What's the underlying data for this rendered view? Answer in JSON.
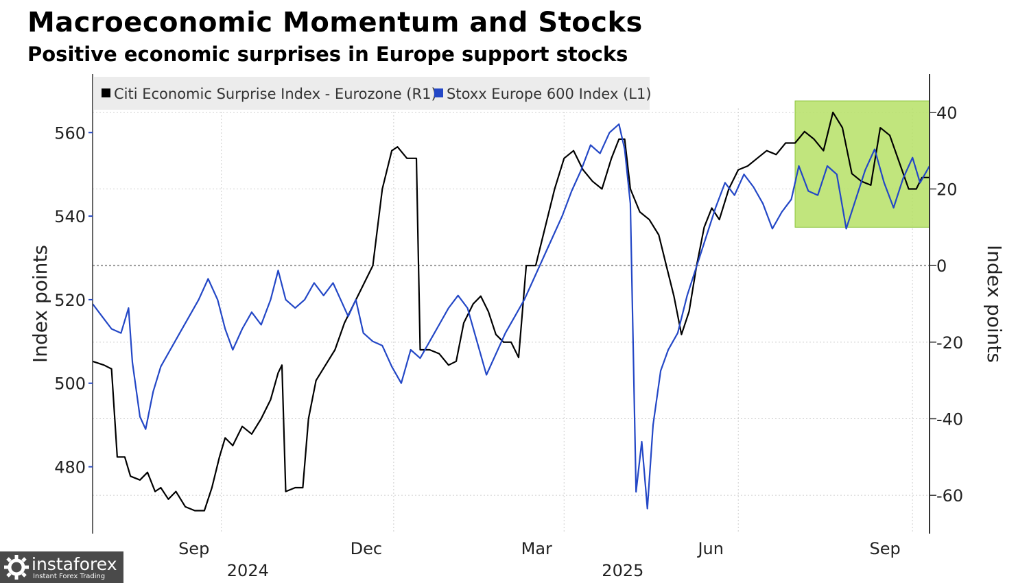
{
  "chart_data": {
    "type": "line",
    "title": "Macroeconomic Momentum and Stocks",
    "subtitle": "Positive economic surprises in Europe support stocks",
    "left_axis": {
      "label": "Index points",
      "ticks": [
        480,
        500,
        520,
        540,
        560
      ],
      "range": [
        464,
        574
      ]
    },
    "right_axis": {
      "label": "Index points",
      "ticks": [
        -60,
        -40,
        -20,
        0,
        20,
        40
      ],
      "range": [
        -70,
        50
      ]
    },
    "x_ticks": [
      {
        "label": "Sep",
        "date": "2024-09-01"
      },
      {
        "label": "Dec",
        "date": "2024-12-01"
      },
      {
        "label": "Mar",
        "date": "2025-03-01"
      },
      {
        "label": "Jun",
        "date": "2025-06-01"
      },
      {
        "label": "Sep",
        "date": "2025-09-01"
      }
    ],
    "year_labels": [
      {
        "label": "2024",
        "date": "2024-09-15"
      },
      {
        "label": "2025",
        "date": "2025-04-01"
      }
    ],
    "x_range": [
      "2024-06-25",
      "2025-09-10"
    ],
    "legend_placement": "top-left",
    "highlight_box": {
      "from": "2025-07-01",
      "to": "2025-09-10",
      "y_from": 10,
      "y_to": 43,
      "color": "#b6e066"
    },
    "series": [
      {
        "name": "Citi Economic Surprise Index - Eurozone (R1)",
        "axis": "right",
        "color": "#000000",
        "points": [
          [
            "2024-06-25",
            -25
          ],
          [
            "2024-07-01",
            -26
          ],
          [
            "2024-07-05",
            -27
          ],
          [
            "2024-07-08",
            -50
          ],
          [
            "2024-07-12",
            -50
          ],
          [
            "2024-07-15",
            -55
          ],
          [
            "2024-07-20",
            -56
          ],
          [
            "2024-07-24",
            -54
          ],
          [
            "2024-07-28",
            -59
          ],
          [
            "2024-07-31",
            -58
          ],
          [
            "2024-08-04",
            -61
          ],
          [
            "2024-08-08",
            -59
          ],
          [
            "2024-08-13",
            -63
          ],
          [
            "2024-08-18",
            -64
          ],
          [
            "2024-08-23",
            -64
          ],
          [
            "2024-08-27",
            -58
          ],
          [
            "2024-08-31",
            -50
          ],
          [
            "2024-09-03",
            -45
          ],
          [
            "2024-09-07",
            -47
          ],
          [
            "2024-09-12",
            -42
          ],
          [
            "2024-09-17",
            -44
          ],
          [
            "2024-09-22",
            -40
          ],
          [
            "2024-09-27",
            -35
          ],
          [
            "2024-10-01",
            -28
          ],
          [
            "2024-10-03",
            -26
          ],
          [
            "2024-10-05",
            -59
          ],
          [
            "2024-10-10",
            -58
          ],
          [
            "2024-10-14",
            -58
          ],
          [
            "2024-10-17",
            -40
          ],
          [
            "2024-10-21",
            -30
          ],
          [
            "2024-10-26",
            -26
          ],
          [
            "2024-10-31",
            -22
          ],
          [
            "2024-11-05",
            -15
          ],
          [
            "2024-11-10",
            -10
          ],
          [
            "2024-11-15",
            -5
          ],
          [
            "2024-11-20",
            0
          ],
          [
            "2024-11-25",
            20
          ],
          [
            "2024-11-30",
            30
          ],
          [
            "2024-12-03",
            31
          ],
          [
            "2024-12-08",
            28
          ],
          [
            "2024-12-13",
            28
          ],
          [
            "2024-12-15",
            -22
          ],
          [
            "2024-12-20",
            -22
          ],
          [
            "2024-12-25",
            -23
          ],
          [
            "2024-12-30",
            -26
          ],
          [
            "2025-01-03",
            -25
          ],
          [
            "2025-01-07",
            -15
          ],
          [
            "2025-01-12",
            -10
          ],
          [
            "2025-01-16",
            -8
          ],
          [
            "2025-01-20",
            -12
          ],
          [
            "2025-01-24",
            -18
          ],
          [
            "2025-01-28",
            -20
          ],
          [
            "2025-02-01",
            -20
          ],
          [
            "2025-02-05",
            -24
          ],
          [
            "2025-02-09",
            0
          ],
          [
            "2025-02-14",
            0
          ],
          [
            "2025-02-19",
            10
          ],
          [
            "2025-02-24",
            20
          ],
          [
            "2025-03-01",
            28
          ],
          [
            "2025-03-06",
            30
          ],
          [
            "2025-03-11",
            25
          ],
          [
            "2025-03-16",
            22
          ],
          [
            "2025-03-21",
            20
          ],
          [
            "2025-03-26",
            28
          ],
          [
            "2025-03-30",
            33
          ],
          [
            "2025-04-02",
            33
          ],
          [
            "2025-04-05",
            20
          ],
          [
            "2025-04-10",
            14
          ],
          [
            "2025-04-15",
            12
          ],
          [
            "2025-04-20",
            8
          ],
          [
            "2025-04-24",
            0
          ],
          [
            "2025-04-28",
            -8
          ],
          [
            "2025-05-02",
            -18
          ],
          [
            "2025-05-06",
            -12
          ],
          [
            "2025-05-10",
            0
          ],
          [
            "2025-05-14",
            10
          ],
          [
            "2025-05-18",
            15
          ],
          [
            "2025-05-22",
            12
          ],
          [
            "2025-05-27",
            20
          ],
          [
            "2025-06-01",
            25
          ],
          [
            "2025-06-06",
            26
          ],
          [
            "2025-06-11",
            28
          ],
          [
            "2025-06-16",
            30
          ],
          [
            "2025-06-21",
            29
          ],
          [
            "2025-06-26",
            32
          ],
          [
            "2025-07-01",
            32
          ],
          [
            "2025-07-06",
            35
          ],
          [
            "2025-07-11",
            33
          ],
          [
            "2025-07-16",
            30
          ],
          [
            "2025-07-21",
            40
          ],
          [
            "2025-07-26",
            36
          ],
          [
            "2025-07-31",
            24
          ],
          [
            "2025-08-05",
            22
          ],
          [
            "2025-08-10",
            21
          ],
          [
            "2025-08-15",
            36
          ],
          [
            "2025-08-20",
            34
          ],
          [
            "2025-08-25",
            27
          ],
          [
            "2025-08-30",
            20
          ],
          [
            "2025-09-03",
            20
          ],
          [
            "2025-09-06",
            23
          ],
          [
            "2025-09-10",
            23
          ]
        ]
      },
      {
        "name": "Stoxx Europe 600 Index (L1)",
        "axis": "left",
        "color": "#2347c6",
        "points": [
          [
            "2024-06-25",
            519
          ],
          [
            "2024-06-30",
            516
          ],
          [
            "2024-07-05",
            513
          ],
          [
            "2024-07-10",
            512
          ],
          [
            "2024-07-14",
            518
          ],
          [
            "2024-07-16",
            505
          ],
          [
            "2024-07-20",
            492
          ],
          [
            "2024-07-23",
            489
          ],
          [
            "2024-07-27",
            498
          ],
          [
            "2024-07-31",
            504
          ],
          [
            "2024-08-05",
            508
          ],
          [
            "2024-08-10",
            512
          ],
          [
            "2024-08-15",
            516
          ],
          [
            "2024-08-20",
            520
          ],
          [
            "2024-08-25",
            525
          ],
          [
            "2024-08-30",
            520
          ],
          [
            "2024-09-03",
            513
          ],
          [
            "2024-09-07",
            508
          ],
          [
            "2024-09-12",
            513
          ],
          [
            "2024-09-17",
            517
          ],
          [
            "2024-09-22",
            514
          ],
          [
            "2024-09-27",
            520
          ],
          [
            "2024-10-01",
            527
          ],
          [
            "2024-10-05",
            520
          ],
          [
            "2024-10-10",
            518
          ],
          [
            "2024-10-15",
            520
          ],
          [
            "2024-10-20",
            524
          ],
          [
            "2024-10-25",
            521
          ],
          [
            "2024-10-30",
            524
          ],
          [
            "2024-11-03",
            520
          ],
          [
            "2024-11-07",
            516
          ],
          [
            "2024-11-11",
            520
          ],
          [
            "2024-11-15",
            512
          ],
          [
            "2024-11-20",
            510
          ],
          [
            "2024-11-25",
            509
          ],
          [
            "2024-11-30",
            504
          ],
          [
            "2024-12-05",
            500
          ],
          [
            "2024-12-10",
            508
          ],
          [
            "2024-12-15",
            506
          ],
          [
            "2024-12-20",
            510
          ],
          [
            "2024-12-25",
            514
          ],
          [
            "2024-12-30",
            518
          ],
          [
            "2025-01-04",
            521
          ],
          [
            "2025-01-09",
            518
          ],
          [
            "2025-01-14",
            510
          ],
          [
            "2025-01-19",
            502
          ],
          [
            "2025-01-24",
            507
          ],
          [
            "2025-01-29",
            512
          ],
          [
            "2025-02-03",
            516
          ],
          [
            "2025-02-08",
            520
          ],
          [
            "2025-02-13",
            525
          ],
          [
            "2025-02-18",
            530
          ],
          [
            "2025-02-23",
            535
          ],
          [
            "2025-02-28",
            540
          ],
          [
            "2025-03-05",
            546
          ],
          [
            "2025-03-10",
            551
          ],
          [
            "2025-03-15",
            557
          ],
          [
            "2025-03-20",
            555
          ],
          [
            "2025-03-25",
            560
          ],
          [
            "2025-03-30",
            562
          ],
          [
            "2025-04-02",
            556
          ],
          [
            "2025-04-05",
            543
          ],
          [
            "2025-04-08",
            474
          ],
          [
            "2025-04-11",
            486
          ],
          [
            "2025-04-14",
            470
          ],
          [
            "2025-04-17",
            490
          ],
          [
            "2025-04-21",
            503
          ],
          [
            "2025-04-25",
            508
          ],
          [
            "2025-04-30",
            512
          ],
          [
            "2025-05-05",
            521
          ],
          [
            "2025-05-10",
            528
          ],
          [
            "2025-05-15",
            535
          ],
          [
            "2025-05-20",
            542
          ],
          [
            "2025-05-25",
            548
          ],
          [
            "2025-05-30",
            545
          ],
          [
            "2025-06-04",
            550
          ],
          [
            "2025-06-09",
            547
          ],
          [
            "2025-06-14",
            543
          ],
          [
            "2025-06-19",
            537
          ],
          [
            "2025-06-24",
            541
          ],
          [
            "2025-06-29",
            544
          ],
          [
            "2025-07-03",
            552
          ],
          [
            "2025-07-08",
            546
          ],
          [
            "2025-07-13",
            545
          ],
          [
            "2025-07-18",
            552
          ],
          [
            "2025-07-23",
            550
          ],
          [
            "2025-07-28",
            537
          ],
          [
            "2025-08-02",
            544
          ],
          [
            "2025-08-07",
            551
          ],
          [
            "2025-08-12",
            556
          ],
          [
            "2025-08-17",
            548
          ],
          [
            "2025-08-22",
            542
          ],
          [
            "2025-08-27",
            549
          ],
          [
            "2025-09-01",
            554
          ],
          [
            "2025-09-05",
            548
          ],
          [
            "2025-09-10",
            552
          ]
        ]
      }
    ]
  },
  "watermark": {
    "name": "instaforex",
    "tagline": "Instant Forex Trading"
  }
}
